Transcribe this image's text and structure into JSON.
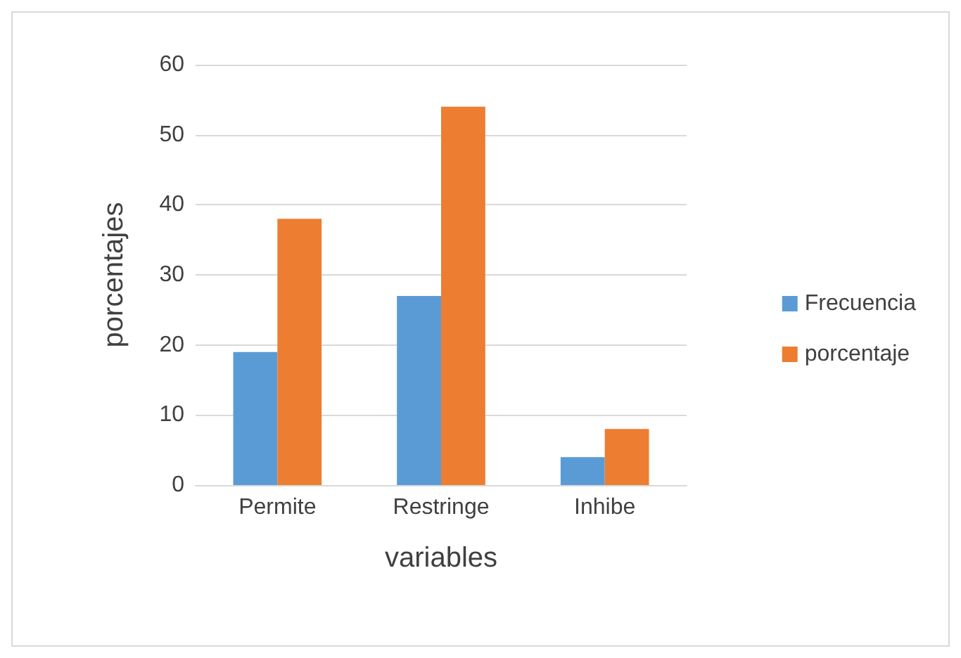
{
  "chart_data": {
    "type": "bar",
    "xlabel": "variables",
    "ylabel": "porcentajes",
    "categories": [
      "Permite",
      "Restringe",
      "Inhibe"
    ],
    "series": [
      {
        "name": "Frecuencia",
        "color": "#5b9bd5",
        "values": [
          19,
          27,
          4
        ]
      },
      {
        "name": "porcentaje",
        "color": "#ed7d31",
        "values": [
          38,
          54,
          8
        ]
      }
    ],
    "ylim": [
      0,
      60
    ],
    "yticks": [
      0,
      10,
      20,
      30,
      40,
      50,
      60
    ],
    "grid": "y",
    "legend": "right"
  }
}
